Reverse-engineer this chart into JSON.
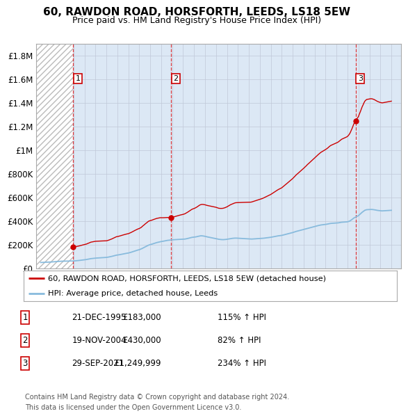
{
  "title": "60, RAWDON ROAD, HORSFORTH, LEEDS, LS18 5EW",
  "subtitle": "Price paid vs. HM Land Registry's House Price Index (HPI)",
  "sale_color": "#cc0000",
  "hpi_color": "#88bbdd",
  "ylim": [
    0,
    1900000
  ],
  "yticks": [
    0,
    200000,
    400000,
    600000,
    800000,
    1000000,
    1200000,
    1400000,
    1600000,
    1800000
  ],
  "ytick_labels": [
    "£0",
    "£200K",
    "£400K",
    "£600K",
    "£800K",
    "£1M",
    "£1.2M",
    "£1.4M",
    "£1.6M",
    "£1.8M"
  ],
  "xmin": 1993,
  "xmax": 2026,
  "sale_years": [
    1995.97,
    2004.88,
    2021.74
  ],
  "sale_prices": [
    183000,
    430000,
    1249999
  ],
  "sale_labels": [
    "1",
    "2",
    "3"
  ],
  "legend_sale": "60, RAWDON ROAD, HORSFORTH, LEEDS, LS18 5EW (detached house)",
  "legend_hpi": "HPI: Average price, detached house, Leeds",
  "table_rows": [
    {
      "num": "1",
      "date": "21-DEC-1995",
      "price": "£183,000",
      "hpi": "115% ↑ HPI"
    },
    {
      "num": "2",
      "date": "19-NOV-2004",
      "price": "£430,000",
      "hpi": "82% ↑ HPI"
    },
    {
      "num": "3",
      "date": "29-SEP-2021",
      "price": "£1,249,999",
      "hpi": "234% ↑ HPI"
    }
  ],
  "footer": "Contains HM Land Registry data © Crown copyright and database right 2024.\nThis data is licensed under the Open Government Licence v3.0.",
  "hpi_monthly_years": [
    1993.0,
    1993.08,
    1993.17,
    1993.25,
    1993.33,
    1993.42,
    1993.5,
    1993.58,
    1993.67,
    1993.75,
    1993.83,
    1993.92,
    1994.0,
    1994.08,
    1994.17,
    1994.25,
    1994.33,
    1994.42,
    1994.5,
    1994.58,
    1994.67,
    1994.75,
    1994.83,
    1994.92,
    1995.0,
    1995.08,
    1995.17,
    1995.25,
    1995.33,
    1995.42,
    1995.5,
    1995.58,
    1995.67,
    1995.75,
    1995.83,
    1995.92,
    1996.0,
    1996.08,
    1996.17,
    1996.25,
    1996.33,
    1996.42,
    1996.5,
    1996.58,
    1996.67,
    1996.75,
    1996.83,
    1996.92,
    1997.0,
    1997.08,
    1997.17,
    1997.25,
    1997.33,
    1997.42,
    1997.5,
    1997.58,
    1997.67,
    1997.75,
    1997.83,
    1997.92,
    1998.0,
    1998.08,
    1998.17,
    1998.25,
    1998.33,
    1998.42,
    1998.5,
    1998.58,
    1998.67,
    1998.75,
    1998.83,
    1998.92,
    1999.0,
    1999.08,
    1999.17,
    1999.25,
    1999.33,
    1999.42,
    1999.5,
    1999.58,
    1999.67,
    1999.75,
    1999.83,
    1999.92,
    2000.0,
    2000.08,
    2000.17,
    2000.25,
    2000.33,
    2000.42,
    2000.5,
    2000.58,
    2000.67,
    2000.75,
    2000.83,
    2000.92,
    2001.0,
    2001.08,
    2001.17,
    2001.25,
    2001.33,
    2001.42,
    2001.5,
    2001.58,
    2001.67,
    2001.75,
    2001.83,
    2001.92,
    2002.0,
    2002.08,
    2002.17,
    2002.25,
    2002.33,
    2002.42,
    2002.5,
    2002.58,
    2002.67,
    2002.75,
    2002.83,
    2002.92,
    2003.0,
    2003.08,
    2003.17,
    2003.25,
    2003.33,
    2003.42,
    2003.5,
    2003.58,
    2003.67,
    2003.75,
    2003.83,
    2003.92,
    2004.0,
    2004.08,
    2004.17,
    2004.25,
    2004.33,
    2004.42,
    2004.5,
    2004.58,
    2004.67,
    2004.75,
    2004.83,
    2004.92,
    2005.0,
    2005.08,
    2005.17,
    2005.25,
    2005.33,
    2005.42,
    2005.5,
    2005.58,
    2005.67,
    2005.75,
    2005.83,
    2005.92,
    2006.0,
    2006.08,
    2006.17,
    2006.25,
    2006.33,
    2006.42,
    2006.5,
    2006.58,
    2006.67,
    2006.75,
    2006.83,
    2006.92,
    2007.0,
    2007.08,
    2007.17,
    2007.25,
    2007.33,
    2007.42,
    2007.5,
    2007.58,
    2007.67,
    2007.75,
    2007.83,
    2007.92,
    2008.0,
    2008.08,
    2008.17,
    2008.25,
    2008.33,
    2008.42,
    2008.5,
    2008.58,
    2008.67,
    2008.75,
    2008.83,
    2008.92,
    2009.0,
    2009.08,
    2009.17,
    2009.25,
    2009.33,
    2009.42,
    2009.5,
    2009.58,
    2009.67,
    2009.75,
    2009.83,
    2009.92,
    2010.0,
    2010.08,
    2010.17,
    2010.25,
    2010.33,
    2010.42,
    2010.5,
    2010.58,
    2010.67,
    2010.75,
    2010.83,
    2010.92,
    2011.0,
    2011.08,
    2011.17,
    2011.25,
    2011.33,
    2011.42,
    2011.5,
    2011.58,
    2011.67,
    2011.75,
    2011.83,
    2011.92,
    2012.0,
    2012.08,
    2012.17,
    2012.25,
    2012.33,
    2012.42,
    2012.5,
    2012.58,
    2012.67,
    2012.75,
    2012.83,
    2012.92,
    2013.0,
    2013.08,
    2013.17,
    2013.25,
    2013.33,
    2013.42,
    2013.5,
    2013.58,
    2013.67,
    2013.75,
    2013.83,
    2013.92,
    2014.0,
    2014.08,
    2014.17,
    2014.25,
    2014.33,
    2014.42,
    2014.5,
    2014.58,
    2014.67,
    2014.75,
    2014.83,
    2014.92,
    2015.0,
    2015.08,
    2015.17,
    2015.25,
    2015.33,
    2015.42,
    2015.5,
    2015.58,
    2015.67,
    2015.75,
    2015.83,
    2015.92,
    2016.0,
    2016.08,
    2016.17,
    2016.25,
    2016.33,
    2016.42,
    2016.5,
    2016.58,
    2016.67,
    2016.75,
    2016.83,
    2016.92,
    2017.0,
    2017.08,
    2017.17,
    2017.25,
    2017.33,
    2017.42,
    2017.5,
    2017.58,
    2017.67,
    2017.75,
    2017.83,
    2017.92,
    2018.0,
    2018.08,
    2018.17,
    2018.25,
    2018.33,
    2018.42,
    2018.5,
    2018.58,
    2018.67,
    2018.75,
    2018.83,
    2018.92,
    2019.0,
    2019.08,
    2019.17,
    2019.25,
    2019.33,
    2019.42,
    2019.5,
    2019.58,
    2019.67,
    2019.75,
    2019.83,
    2019.92,
    2020.0,
    2020.08,
    2020.17,
    2020.25,
    2020.33,
    2020.42,
    2020.5,
    2020.58,
    2020.67,
    2020.75,
    2020.83,
    2020.92,
    2021.0,
    2021.08,
    2021.17,
    2021.25,
    2021.33,
    2021.42,
    2021.5,
    2021.58,
    2021.67,
    2021.75,
    2021.83,
    2021.92,
    2022.0,
    2022.08,
    2022.17,
    2022.25,
    2022.33,
    2022.42,
    2022.5,
    2022.58,
    2022.67,
    2022.75,
    2022.83,
    2022.92,
    2023.0,
    2023.08,
    2023.17,
    2023.25,
    2023.33,
    2023.42,
    2023.5,
    2023.58,
    2023.67,
    2023.75,
    2023.83,
    2023.92,
    2024.0,
    2024.08,
    2024.17,
    2024.25,
    2024.33,
    2024.42,
    2024.5,
    2024.58,
    2024.67,
    2024.75,
    2024.83,
    2024.92,
    2025.0
  ],
  "hpi_monthly_values": [
    52000,
    52500,
    52800,
    53200,
    53500,
    53800,
    54200,
    54600,
    55000,
    55300,
    55700,
    56000,
    56500,
    57000,
    57500,
    58200,
    58800,
    59400,
    60000,
    60600,
    61200,
    61800,
    62400,
    62900,
    63000,
    63200,
    63400,
    63500,
    63600,
    63700,
    63800,
    63900,
    64000,
    64100,
    64200,
    64300,
    64500,
    65000,
    65800,
    66500,
    67200,
    68000,
    69000,
    70000,
    71000,
    72000,
    73000,
    74000,
    75000,
    76000,
    77000,
    78500,
    80000,
    81500,
    83000,
    84500,
    85500,
    86500,
    87500,
    88500,
    89000,
    89500,
    90000,
    90500,
    91000,
    91500,
    92000,
    92500,
    93000,
    93500,
    94000,
    94500,
    95000,
    96000,
    97500,
    99000,
    100500,
    102000,
    104000,
    106000,
    108000,
    110000,
    112000,
    114000,
    115000,
    116000,
    117500,
    119000,
    120500,
    122000,
    123500,
    125000,
    126500,
    128000,
    129500,
    131000,
    132000,
    134000,
    136000,
    138500,
    141000,
    143500,
    146000,
    148500,
    151000,
    153500,
    156000,
    158500,
    160000,
    163000,
    166000,
    170000,
    174000,
    178000,
    182000,
    186000,
    190000,
    194000,
    198000,
    201000,
    203000,
    205000,
    207500,
    210000,
    212500,
    215000,
    217500,
    220000,
    222000,
    224000,
    226000,
    228000,
    229000,
    230000,
    231500,
    233000,
    234500,
    236000,
    237500,
    239000,
    240000,
    241000,
    242000,
    243000,
    243500,
    244000,
    244500,
    245000,
    245500,
    246000,
    246500,
    247000,
    247500,
    247800,
    248000,
    248200,
    248500,
    249000,
    250000,
    251500,
    253000,
    255000,
    257000,
    259000,
    261000,
    263000,
    264500,
    265500,
    266000,
    267000,
    268500,
    270000,
    272000,
    274000,
    276000,
    277000,
    277500,
    277000,
    276000,
    274500,
    273000,
    271000,
    269000,
    267500,
    266000,
    264500,
    263000,
    261500,
    260000,
    258500,
    257000,
    255500,
    254000,
    252000,
    250000,
    248000,
    247000,
    246000,
    245500,
    245000,
    245000,
    245500,
    246000,
    247000,
    248000,
    249500,
    251000,
    252500,
    254000,
    255000,
    256000,
    257000,
    257500,
    258000,
    258000,
    257500,
    257000,
    256500,
    256000,
    255500,
    255000,
    254500,
    254000,
    253500,
    253000,
    252500,
    252000,
    251500,
    251000,
    250500,
    250000,
    250000,
    250500,
    251000,
    251500,
    252000,
    252500,
    253000,
    253500,
    254000,
    254500,
    255000,
    255500,
    256000,
    257000,
    258000,
    259000,
    260000,
    261000,
    262000,
    263000,
    264000,
    265000,
    266500,
    268000,
    269500,
    271000,
    272500,
    274000,
    275500,
    277000,
    278000,
    279000,
    280000,
    281000,
    283000,
    285000,
    287000,
    289000,
    291000,
    293000,
    295000,
    297000,
    299000,
    301000,
    303000,
    305000,
    307500,
    310000,
    312500,
    315000,
    317000,
    319000,
    321000,
    323000,
    325000,
    327000,
    329000,
    331000,
    333000,
    335000,
    337500,
    340000,
    342000,
    344000,
    346000,
    348000,
    350000,
    352000,
    354000,
    356000,
    358000,
    360000,
    362000,
    364000,
    366000,
    367500,
    369000,
    370000,
    371000,
    372000,
    373000,
    374000,
    375000,
    376500,
    378000,
    380000,
    381500,
    382500,
    383000,
    383500,
    384000,
    384500,
    385000,
    385500,
    386000,
    387000,
    388500,
    390000,
    391500,
    392500,
    393000,
    393500,
    394000,
    394500,
    395000,
    396000,
    398000,
    401000,
    405000,
    410000,
    416000,
    422000,
    428000,
    432000,
    436000,
    440000,
    444000,
    448000,
    455000,
    462000,
    469000,
    476000,
    482000,
    488000,
    493000,
    496000,
    498000,
    498500,
    499000,
    499500,
    500000,
    500200,
    499800,
    499000,
    498000,
    496500,
    495000,
    493500,
    492000,
    491000,
    490000,
    489000,
    488500,
    488000,
    488500,
    489000,
    489500,
    490000,
    490500,
    491000,
    491500,
    492000,
    492500,
    493000
  ]
}
